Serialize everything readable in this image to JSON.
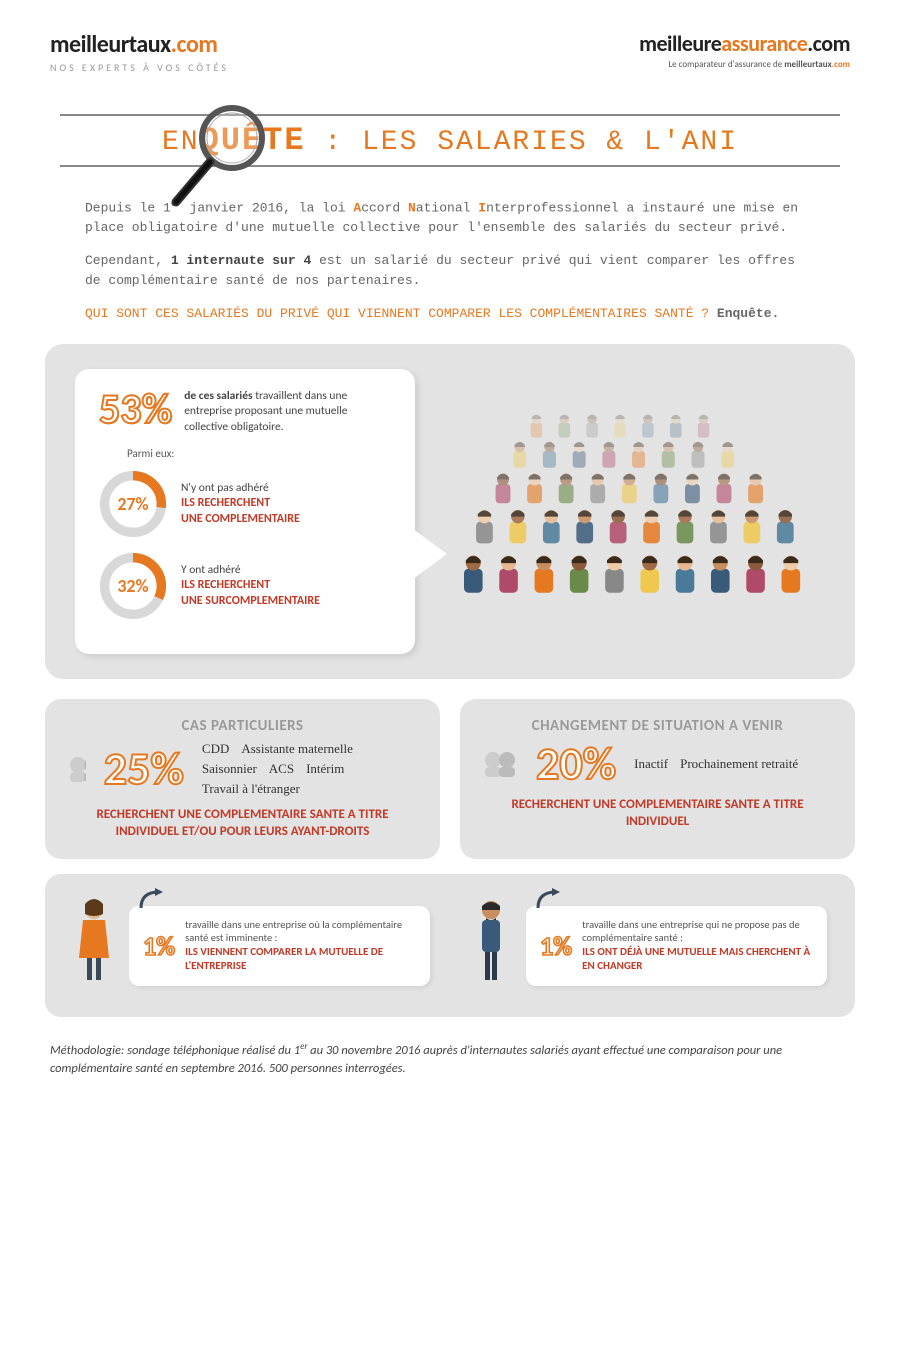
{
  "header": {
    "logo_left_brand_html": "meilleurtaux<span class='orange'>.com</span>",
    "logo_left_tag": "NOS EXPERTS À VOS CÔTÉS",
    "logo_right_brand_html": "meilleure<span class='orange'>assurance</span>.com",
    "logo_right_sub_html": "Le comparateur d'assurance de <b>meilleurtaux<span style='color:#e67820'>.com</span></b>"
  },
  "title_html": "EN<span class='big'>QUÊTE</span> : LES SALARIES & L'ANI",
  "intro": {
    "p1_html": "Depuis le 1<sup>er</sup> janvier 2016, la loi <span class='hl'>A</span>ccord <span class='hl'>N</span>ational <span class='hl'>I</span>nterprofessionnel a instauré une mise en place obligatoire d'une mutuelle collective pour l'ensemble des salariés du secteur privé.",
    "p2_html": "Cependant, <span class='b'>1 internaute sur 4</span> est un salarié du secteur privé qui vient comparer les offres de complémentaire santé de nos partenaires.",
    "p3_html": "<span class='question'>QUI SONT CES SALARIÉS DU PRIVÉ QUI VIENNENT COMPARER LES COMPLÉMENTAIRES SANTÉ ? <span class='end'>Enquête.</span></span>"
  },
  "panel1": {
    "pct53": "53%",
    "pct53_text_html": "<b>de ces salariés</b> travaillent dans une entreprise proposant une mutuelle collective obligatoire.",
    "parmi": "Parmi eux:",
    "ring1": {
      "value": 27,
      "label": "27%",
      "color": "#e67820",
      "track": "#d8d8d8",
      "line1": "N'y ont pas adhéré",
      "line2": "ILS RECHERCHENT",
      "line3": "UNE COMPLEMENTAIRE"
    },
    "ring2": {
      "value": 32,
      "label": "32%",
      "color": "#e67820",
      "track": "#d8d8d8",
      "line1": "Y ont adhéré",
      "line2": "ILS RECHERCHENT",
      "line3": "UNE SURCOMPLEMENTAIRE"
    }
  },
  "panel2a": {
    "hdr": "CAS PARTICULIERS",
    "pct": "25%",
    "tags": [
      "CDD",
      "Assistante maternelle",
      "Saisonnier",
      "ACS",
      "Intérim",
      "Travail à l'étranger"
    ],
    "foot": "RECHERCHENT UNE COMPLEMENTAIRE SANTE A TITRE INDIVIDUEL ET/OU POUR LEURS AYANT-DROITS"
  },
  "panel2b": {
    "hdr": "CHANGEMENT DE SITUATION A VENIR",
    "pct": "20%",
    "tags": [
      "Inactif",
      "Prochainement retraité"
    ],
    "foot": "RECHERCHENT UNE COMPLEMENTAIRE SANTE A TITRE INDIVIDUEL"
  },
  "panel3": {
    "left": {
      "pct": "1%",
      "text": "travaille dans une entreprise où la complémentaire santé est imminente :",
      "red": "ILS VIENNENT COMPARER LA MUTUELLE DE L'ENTREPRISE"
    },
    "right": {
      "pct": "1%",
      "text": "travaille dans une entreprise qui ne propose pas de complémentaire santé :",
      "red": "ILS ONT DÉJÀ UNE MUTUELLE MAIS CHERCHENT À EN CHANGER"
    }
  },
  "footnote_html": "Méthodologie: sondage téléphonique réalisé du 1<sup>er</sup> au 30 novembre 2016 auprès d'internautes salariés ayant effectué une comparaison pour une complémentaire santé en septembre 2016. 500 personnes interrogées.",
  "colors": {
    "orange": "#e67820",
    "red": "#c13a28",
    "panel_bg": "#e3e3e3"
  }
}
